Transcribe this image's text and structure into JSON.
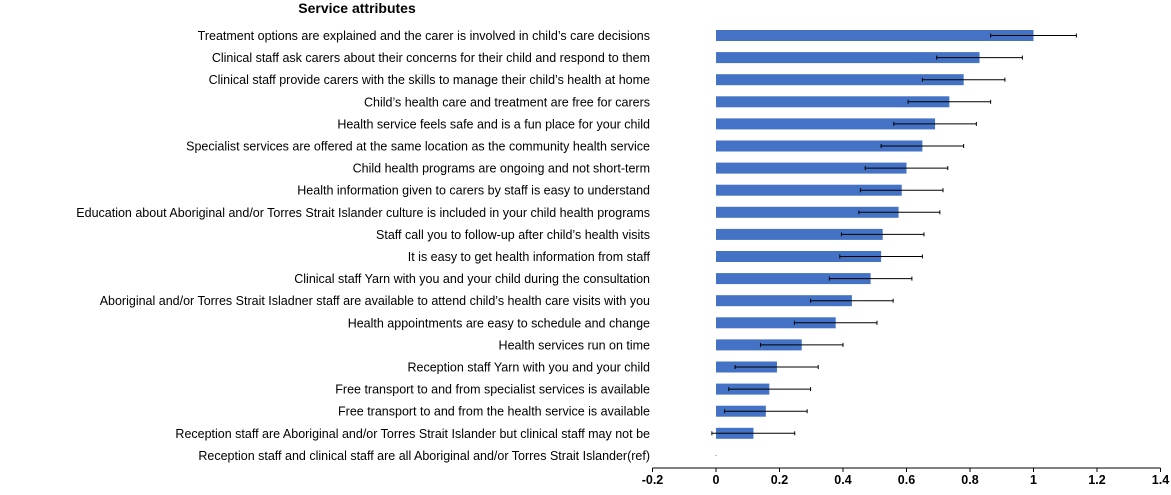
{
  "chart_data": {
    "type": "bar",
    "orientation": "horizontal",
    "title": "Service attributes",
    "xlim": [
      -0.2,
      1.4
    ],
    "xticks": [
      -0.2,
      0,
      0.2,
      0.4,
      0.6,
      0.8,
      1,
      1.2,
      1.4
    ],
    "xtick_labels": [
      "-0.2",
      "0",
      "0.2",
      "0.4",
      "0.6",
      "0.8",
      "1",
      "1.2",
      "1.4"
    ],
    "bar_color": "#4472c4",
    "error_bar_color": "#000000",
    "grid": false,
    "legend": "none",
    "categories": [
      "Treatment options are explained and the carer is involved in child’s care decisions",
      "Clinical staff ask carers about their concerns for their child and respond to them",
      "Clinical staff provide carers with the skills to manage their child’s health at home",
      "Child’s health care and treatment are free for carers",
      "Health service feels safe and is a fun place for your child",
      "Specialist services are offered at the same location as the community health service",
      "Child health programs are ongoing and not short-term",
      "Health information given to carers by staff is easy to understand",
      "Education about Aboriginal and/or Torres Strait Islander culture is included in your child health programs",
      "Staff call you to follow-up after child’s health visits",
      "It is easy to get health information from staff",
      "Clinical staff Yarn with you and your child during the consultation",
      "Aboriginal and/or Torres Strait Isladner staff are available to attend child’s health care visits with you",
      "Health appointments are easy to schedule and change",
      "Health services run on time",
      "Reception staff Yarn with you and your child",
      "Free transport to and from specialist services is available",
      "Free transport to and from the health service is available",
      "Reception staff are Aboriginal and/or Torres Strait Islander but clinical staff may not be",
      "Reception staff and clinical staff are all Aboriginal and/or Torres Strait Islander(ref)"
    ],
    "values": [
      1.0,
      0.83,
      0.78,
      0.735,
      0.69,
      0.65,
      0.6,
      0.585,
      0.575,
      0.525,
      0.52,
      0.487,
      0.428,
      0.377,
      0.27,
      0.192,
      0.168,
      0.157,
      0.118,
      0.0
    ],
    "error_low": [
      0.865,
      0.695,
      0.65,
      0.605,
      0.56,
      0.52,
      0.47,
      0.455,
      0.45,
      0.395,
      0.39,
      0.357,
      0.298,
      0.247,
      0.14,
      0.06,
      0.04,
      0.027,
      -0.013,
      0.0
    ],
    "error_high": [
      1.135,
      0.965,
      0.91,
      0.865,
      0.82,
      0.78,
      0.73,
      0.715,
      0.705,
      0.655,
      0.65,
      0.617,
      0.558,
      0.507,
      0.4,
      0.322,
      0.298,
      0.287,
      0.248,
      0.0
    ]
  }
}
